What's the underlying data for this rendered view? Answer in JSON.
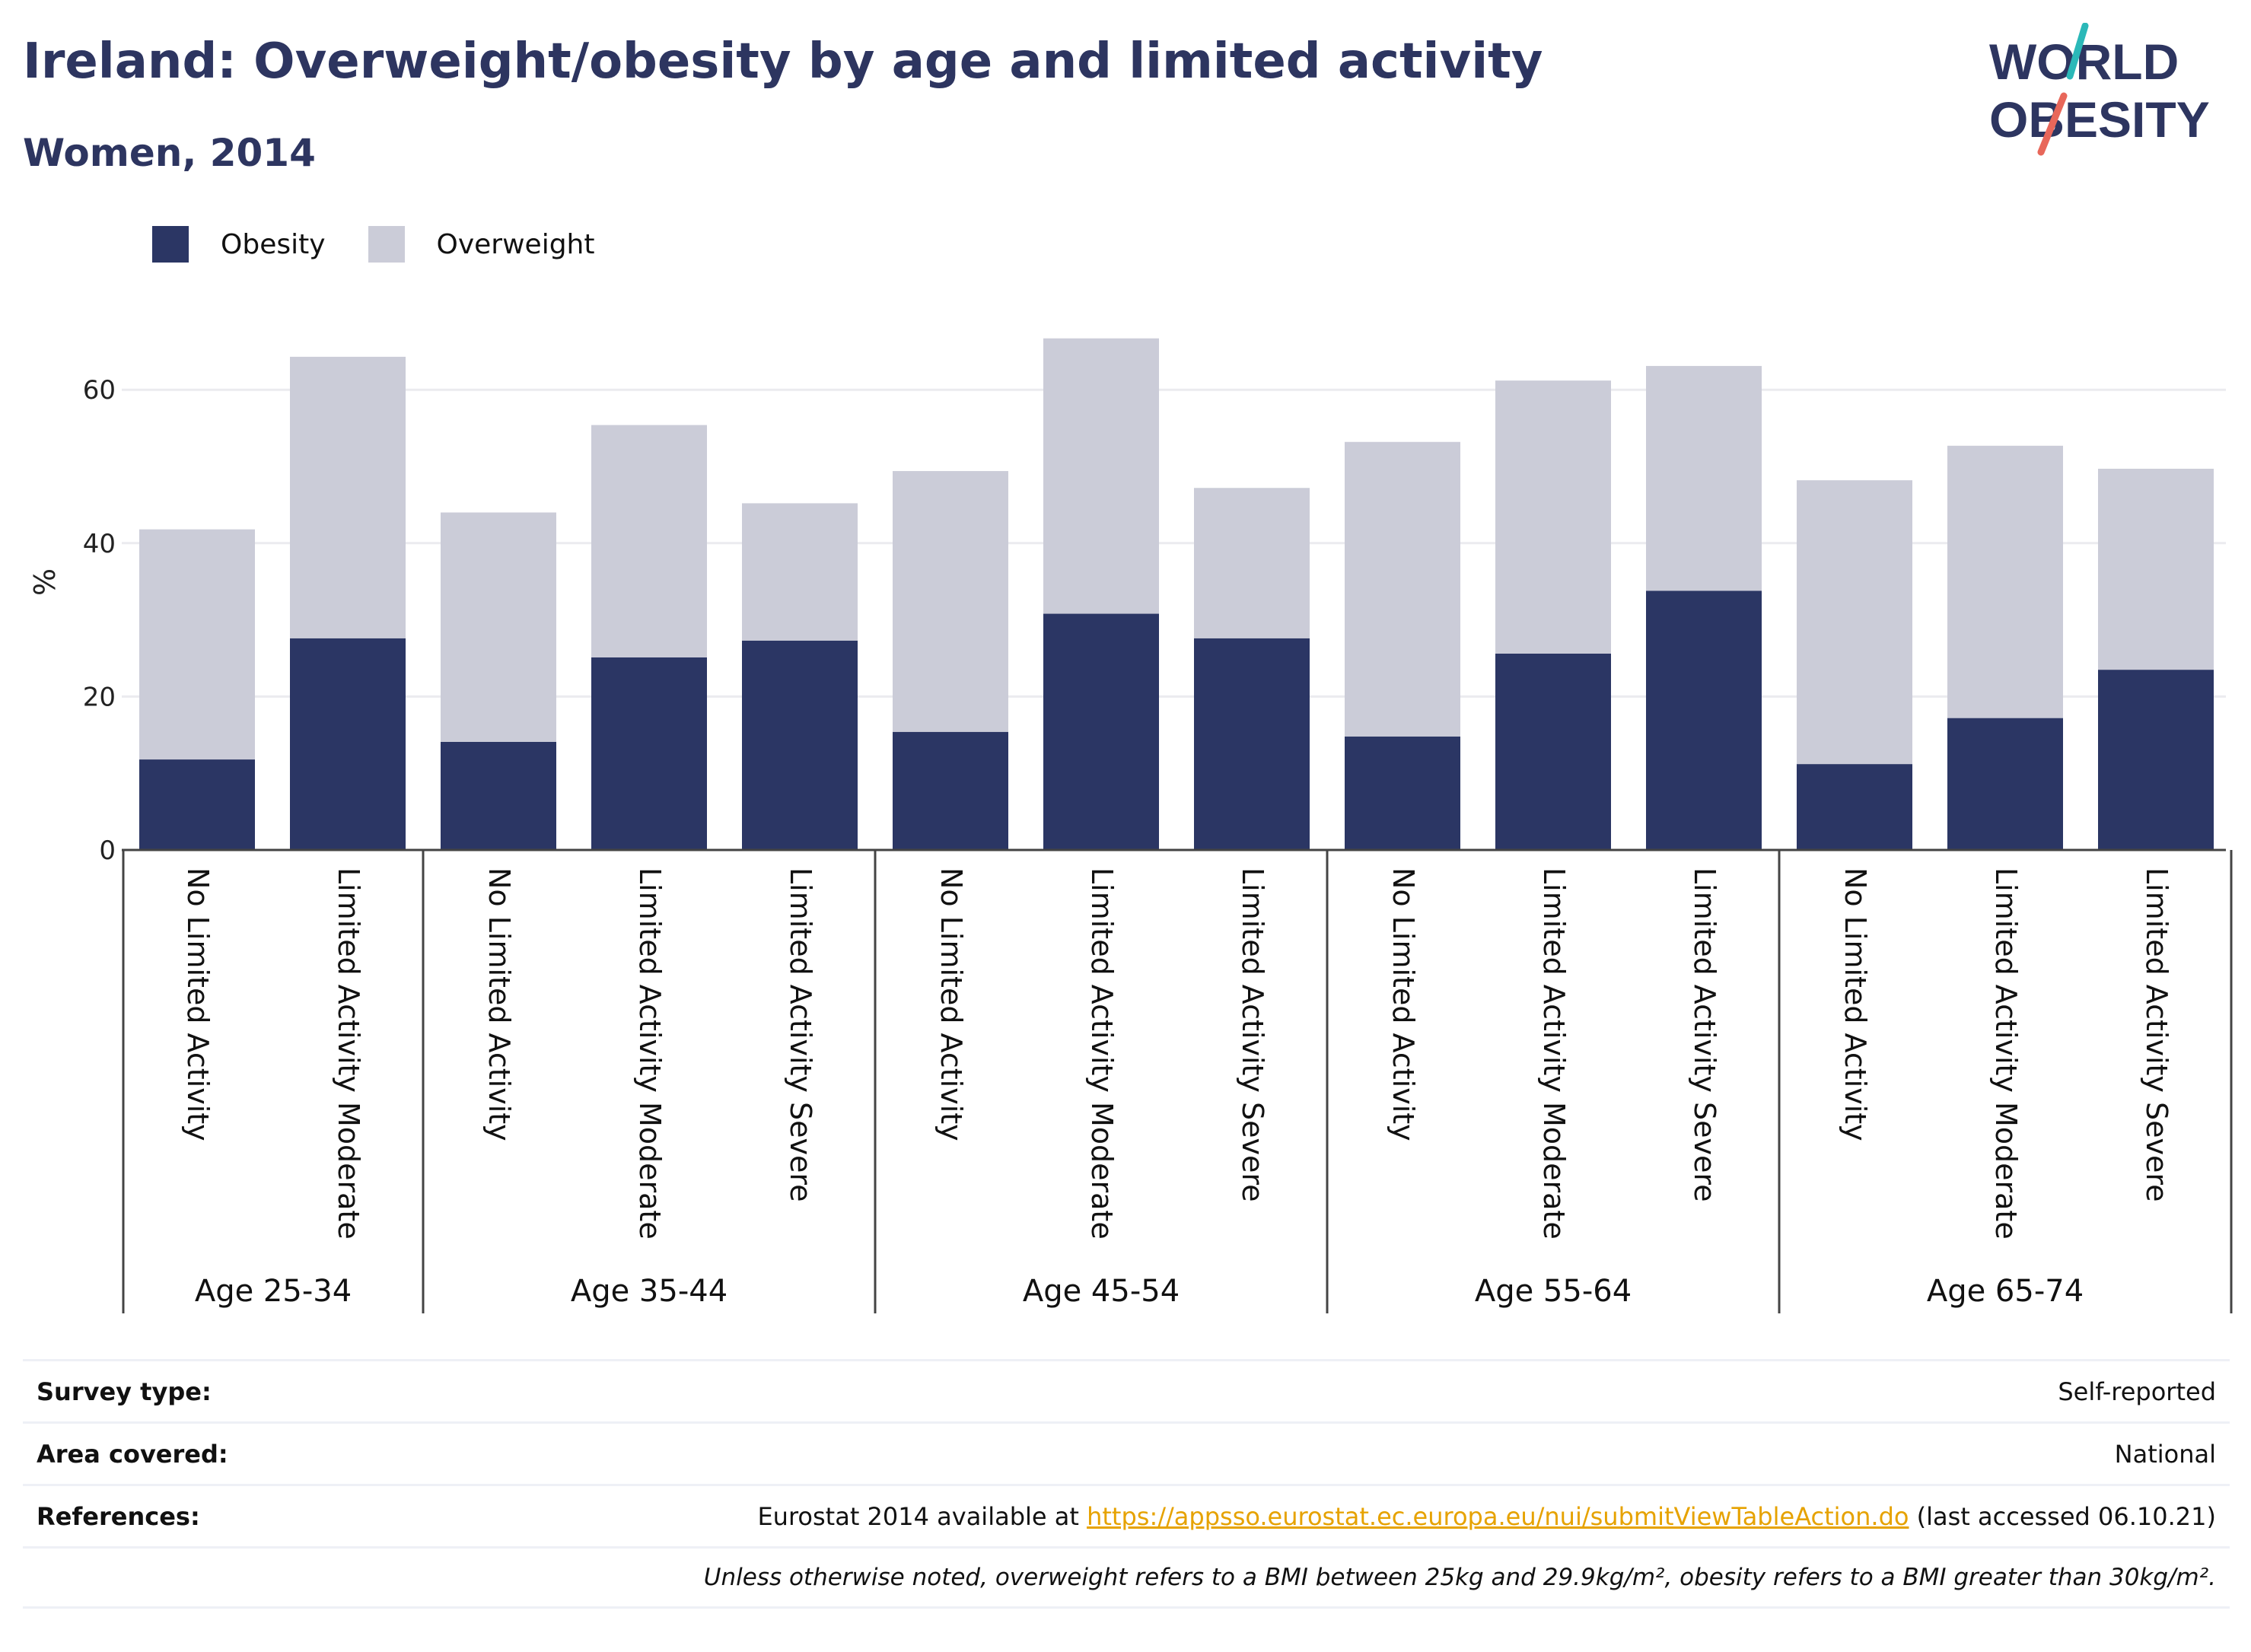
{
  "header": {
    "title": "Ireland: Overweight/obesity by age and limited activity",
    "subtitle": "Women, 2014"
  },
  "logo": {
    "text_line1": "WORLD",
    "text_line2": "OBESITY",
    "icon": "world-obesity-logo",
    "colors": {
      "text": "#2d3560",
      "slash_top": "#2bb8b8",
      "slash_bottom": "#e8675a"
    }
  },
  "colors": {
    "obesity": "#2b3664",
    "overweight": "#cbccd8",
    "grid": "#ebebef",
    "axis": "#444444"
  },
  "chart_data": {
    "type": "bar",
    "stacked": true,
    "ylabel": "%",
    "ylim": [
      0,
      70
    ],
    "yticks": [
      0,
      20,
      40,
      60
    ],
    "grid": true,
    "legend_position": "top-left",
    "groups": [
      {
        "label": "Age 25-34",
        "categories": [
          "No Limited Activity",
          "Limited Activity Moderate"
        ]
      },
      {
        "label": "Age 35-44",
        "categories": [
          "No Limited Activity",
          "Limited Activity Moderate",
          "Limited Activity Severe"
        ]
      },
      {
        "label": "Age 45-54",
        "categories": [
          "No Limited Activity",
          "Limited Activity Moderate",
          "Limited Activity Severe"
        ]
      },
      {
        "label": "Age 55-64",
        "categories": [
          "No Limited Activity",
          "Limited Activity Moderate",
          "Limited Activity Severe"
        ]
      },
      {
        "label": "Age 65-74",
        "categories": [
          "No Limited Activity",
          "Limited Activity Moderate",
          "Limited Activity Severe"
        ]
      }
    ],
    "series": [
      {
        "name": "Obesity",
        "values": [
          11.8,
          27.6,
          14.1,
          25.1,
          27.3,
          15.4,
          30.8,
          27.6,
          14.8,
          25.6,
          33.8,
          11.2,
          17.2,
          23.5
        ]
      },
      {
        "name": "Overweight",
        "values": [
          30.0,
          36.7,
          29.9,
          30.3,
          17.9,
          34.0,
          35.9,
          19.6,
          38.4,
          35.6,
          29.3,
          37.0,
          35.5,
          26.2
        ]
      }
    ]
  },
  "meta": {
    "survey_type_label": "Survey type:",
    "survey_type_value": "Self-reported",
    "area_label": "Area covered:",
    "area_value": "National",
    "references_label": "References:",
    "references_prefix": "Eurostat 2014 available at ",
    "references_link": "https://appsso.eurostat.ec.europa.eu/nui/submitViewTableAction.do",
    "references_suffix": " (last accessed 06.10.21)",
    "note": "Unless otherwise noted, overweight refers to a BMI between 25kg and 29.9kg/m², obesity refers to a BMI greater than 30kg/m²."
  }
}
